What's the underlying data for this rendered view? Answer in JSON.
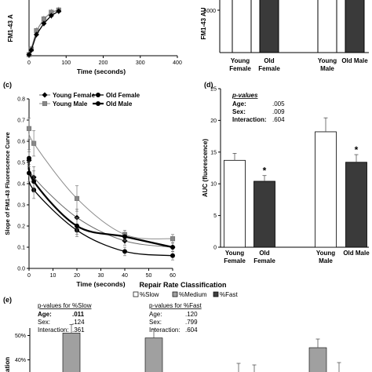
{
  "panel_a": {
    "ylabel": "FM1-43 A",
    "xlabel": "Time (seconds)",
    "xticks": [
      "0",
      "100",
      "200",
      "300",
      "400"
    ],
    "xlim": [
      0,
      400
    ]
  },
  "panel_b": {
    "ylabel": "FM1-43 AU",
    "ytick": "5000",
    "groups": [
      {
        "line1": "Young",
        "line2": "Female"
      },
      {
        "line1": "Old",
        "line2": "Female"
      },
      {
        "line1": "Young",
        "line2": "Male"
      },
      {
        "line1": "Old Male",
        "line2": ""
      }
    ]
  },
  "panel_c": {
    "letter": "(c)",
    "legend": [
      "Young Female",
      "Old Female",
      "Young Male",
      "Old Male"
    ]
  },
  "panel_d": {
    "letter": "(d)",
    "pvalues_title": "p-values",
    "pvalues": [
      {
        "label": "Age:",
        "value": ".005"
      },
      {
        "label": "Sex:",
        "value": ".009"
      },
      {
        "label": "Interaction:",
        "value": ".604"
      }
    ]
  },
  "panel_e": {
    "letter": "(e)",
    "title": "Repair Rate Classification",
    "legend": [
      "%Slow",
      "%Medium",
      "%Fast"
    ],
    "p_slow_title": "p-values for %Slow",
    "p_slow": [
      {
        "label": "Age:",
        "value": ".011"
      },
      {
        "label": "Sex:",
        "value": ".124"
      },
      {
        "label": "Interaction:",
        "value": ".361"
      }
    ],
    "p_fast_title": "p-values for %Fast",
    "p_fast": [
      {
        "label": "Age:",
        "value": ".120"
      },
      {
        "label": "Sex:",
        "value": ".799"
      },
      {
        "label": "Interaction:",
        "value": ".604"
      }
    ],
    "yticks": [
      "50%",
      "40%"
    ],
    "ylabel_fragment": "ation"
  },
  "chart_data": [
    {
      "type": "line",
      "panel": "a",
      "xlabel": "Time (seconds)",
      "xlim": [
        0,
        400
      ],
      "series": [
        {
          "x": [
            0,
            6,
            20,
            40,
            60,
            80
          ],
          "values": [
            0.02,
            0.12,
            0.45,
            0.66,
            0.78,
            0.82
          ]
        },
        {
          "x": [
            0,
            6,
            20,
            40,
            60,
            80
          ],
          "values": [
            0.02,
            0.1,
            0.38,
            0.58,
            0.72,
            0.8
          ]
        }
      ]
    },
    {
      "type": "bar",
      "panel": "b",
      "categories": [
        "Young Female",
        "Old Female",
        "Young Male",
        "Old Male"
      ],
      "colors": [
        "#ffffff",
        "#3a3a3a",
        "#ffffff",
        "#3a3a3a"
      ]
    },
    {
      "type": "line",
      "panel": "c",
      "ylabel": "Slope of FM1-43 Fluorescence Curve",
      "xlabel": "Time (seconds)",
      "xlim": [
        0,
        60
      ],
      "ylim": [
        0,
        0.8
      ],
      "xticks": [
        0,
        10,
        20,
        30,
        40,
        50,
        60
      ],
      "yticks": [
        0,
        0.1,
        0.2,
        0.3,
        0.4,
        0.5,
        0.6,
        0.7,
        0.8
      ],
      "x": [
        0,
        2,
        20,
        40,
        60
      ],
      "series": [
        {
          "name": "Young Female",
          "values": [
            0.51,
            0.43,
            0.24,
            0.13,
            0.1
          ],
          "err": [
            0.04,
            0.05,
            0.04,
            0.02,
            0.02
          ]
        },
        {
          "name": "Old Female",
          "values": [
            0.45,
            0.37,
            0.18,
            0.08,
            0.06
          ],
          "err": [
            0.04,
            0.04,
            0.03,
            0.02,
            0.02
          ]
        },
        {
          "name": "Young Male",
          "values": [
            0.66,
            0.59,
            0.33,
            0.16,
            0.14
          ],
          "err": [
            0.05,
            0.06,
            0.06,
            0.02,
            0.02
          ]
        },
        {
          "name": "Old Male",
          "values": [
            0.52,
            0.41,
            0.2,
            0.15,
            0.1
          ],
          "err": [
            0.04,
            0.05,
            0.04,
            0.02,
            0.02
          ]
        }
      ]
    },
    {
      "type": "bar",
      "panel": "d",
      "ylabel": "AUC (fluorescence)",
      "ylim": [
        0,
        25
      ],
      "yticks": [
        0,
        5,
        10,
        15,
        20,
        25
      ],
      "categories": [
        "Young Female",
        "Old Female",
        "Young Male",
        "Old Male"
      ],
      "values": [
        13.7,
        10.4,
        18.2,
        13.4
      ],
      "err": [
        1.1,
        0.9,
        2.2,
        1.2
      ],
      "significant": [
        false,
        true,
        false,
        true
      ],
      "colors": [
        "#ffffff",
        "#3a3a3a",
        "#ffffff",
        "#3a3a3a"
      ]
    },
    {
      "type": "bar",
      "panel": "e",
      "title": "Repair Rate Classification",
      "series": [
        {
          "name": "%Slow",
          "color": "#ffffff"
        },
        {
          "name": "%Medium",
          "color": "#a0a0a0"
        },
        {
          "name": "%Fast",
          "color": "#404040"
        }
      ],
      "partial_tops_percent": [
        51,
        49,
        45
      ]
    }
  ]
}
